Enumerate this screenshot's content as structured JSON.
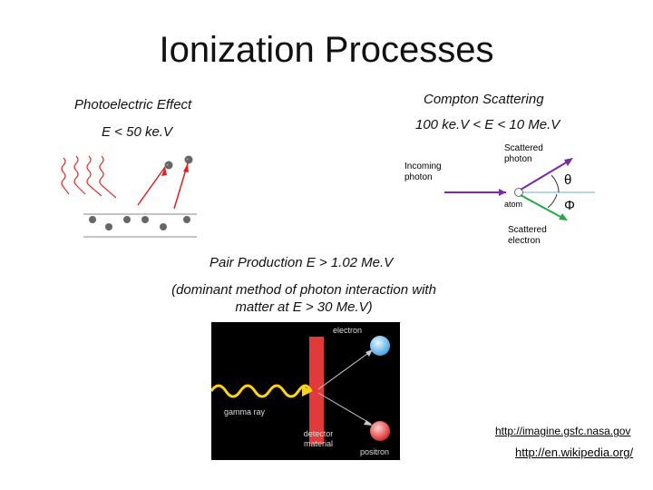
{
  "slide": {
    "title": "Ionization Processes",
    "photoelectric": {
      "heading": "Photoelectric Effect",
      "condition": "E < 50 ke.V"
    },
    "compton": {
      "heading": "Compton Scattering",
      "condition": "100 ke.V < E < 10 Me.V",
      "diagram_labels": {
        "scattered_photon": "Scattered photon",
        "incoming_photon": "Incoming photon",
        "atom": "atom",
        "scattered_electron": "Scattered electron",
        "theta": "θ",
        "phi": "Φ"
      }
    },
    "pair": {
      "heading": "Pair Production E > 1.02 Me.V",
      "note": "(dominant method of photon interaction with matter at E > 30 Me.V)",
      "diagram_labels": {
        "electron": "electron",
        "gamma_ray": "gamma ray",
        "detector_material": "detector material",
        "positron": "positron"
      }
    },
    "links": [
      "http://imagine.gsfc.nasa.gov",
      "http://en.wikipedia.org/"
    ]
  }
}
